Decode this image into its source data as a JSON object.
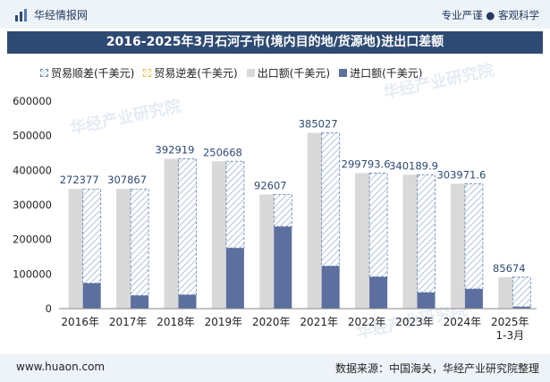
{
  "header": {
    "brand": "华经情报网",
    "tagline": "专业严谨 ● 客观科学"
  },
  "title": "2016-2025年3月石河子市(境内目的地/货源地)进出口差额",
  "legend": [
    {
      "label": "贸易顺差(千美元)",
      "color": "#5c7fb0",
      "pattern": "hatch"
    },
    {
      "label": "贸易逆差(千美元)",
      "color": "#e8c14a",
      "pattern": "hatch"
    },
    {
      "label": "出口额(千美元)",
      "color": "#d9d9d9",
      "pattern": "solid"
    },
    {
      "label": "进口额(千美元)",
      "color": "#5c6f9e",
      "pattern": "solid"
    }
  ],
  "chart_data": {
    "type": "bar",
    "categories": [
      "2016年",
      "2017年",
      "2018年",
      "2019年",
      "2020年",
      "2021年",
      "2022年",
      "2023年",
      "2024年",
      "2025年\n1-3月"
    ],
    "series": [
      {
        "name": "出口额(千美元)",
        "values": [
          346000,
          346000,
          433000,
          426000,
          330000,
          508000,
          392000,
          387000,
          361000,
          91000
        ]
      },
      {
        "name": "进口额(千美元)",
        "values": [
          73623,
          38133,
          40081,
          175332,
          237393,
          122973,
          92206,
          46810,
          57028,
          5326
        ]
      },
      {
        "name": "贸易顺差(千美元)",
        "values": [
          272377,
          307867,
          392919,
          250668,
          92607,
          385027,
          299793.6,
          340189.9,
          303971.6,
          85674
        ]
      }
    ],
    "data_labels": [
      "272377",
      "307867",
      "392919",
      "250668",
      "92607",
      "385027",
      "299793.6",
      "340189.9",
      "303971.6",
      "85674"
    ],
    "y_ticks": [
      "0",
      "100000",
      "200000",
      "300000",
      "400000",
      "500000",
      "600000"
    ],
    "ylim": [
      0,
      600000
    ],
    "grid": false,
    "legend_position": "top"
  },
  "footer": {
    "website": "www.huaon.com",
    "source": "数据来源：中国海关，华经产业研究院整理"
  },
  "watermark": "华经产业研究院"
}
